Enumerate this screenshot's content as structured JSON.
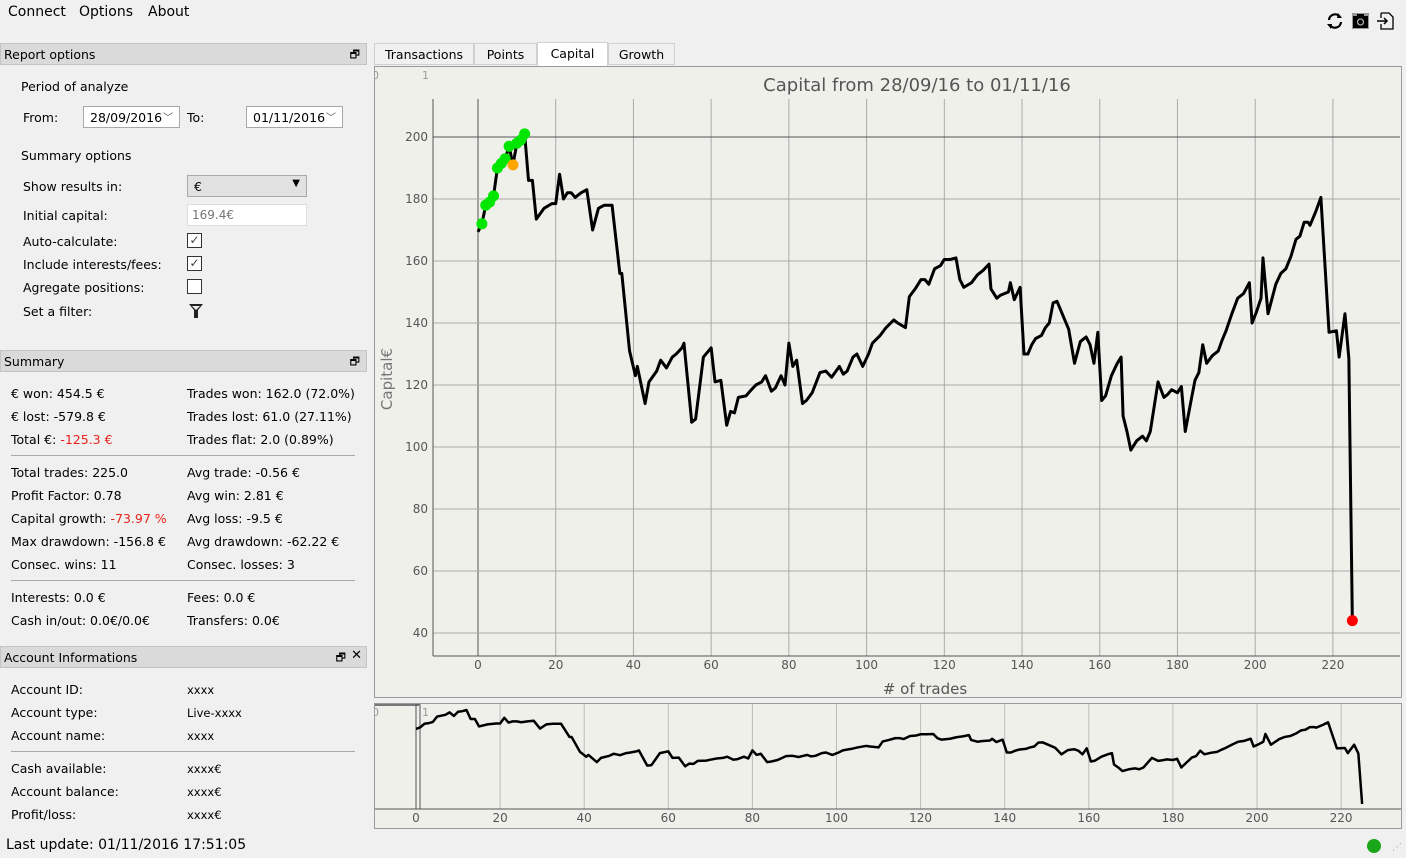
{
  "menu": {
    "connect": "Connect",
    "options": "Options",
    "about": "About"
  },
  "toolbar": {
    "icons": [
      "refresh-icon",
      "camera-icon",
      "export-icon"
    ]
  },
  "report_options": {
    "title": "Report options",
    "period_label": "Period of analyze",
    "from_label": "From:",
    "from_value": "28/09/2016",
    "to_label": "To:",
    "to_value": "01/11/2016",
    "summary_label": "Summary options",
    "show_results_label": "Show results in:",
    "show_results_value": "€",
    "initial_capital_label": "Initial capital:",
    "initial_capital_placeholder": "169.4€",
    "auto_calc_label": "Auto-calculate:",
    "auto_calc": true,
    "include_fees_label": "Include interests/fees:",
    "include_fees": true,
    "aggregate_label": "Agregate positions:",
    "aggregate": false,
    "filter_label": "Set a filter:"
  },
  "summary": {
    "title": "Summary",
    "won_label": "€ won:",
    "won": "454.5 €",
    "lost_label": "€ lost:",
    "lost": "-579.8 €",
    "total_label": "Total €:",
    "total": "-125.3 €",
    "trades_won": "Trades won: 162.0 (72.0%)",
    "trades_lost": "Trades lost: 61.0 (27.11%)",
    "trades_flat": "Trades flat: 2.0 (0.89%)",
    "total_trades": "Total trades: 225.0",
    "profit_factor": "Profit Factor: 0.78",
    "capital_growth_label": "Capital growth:",
    "capital_growth": "-73.97 %",
    "max_drawdown": "Max drawdown: -156.8 €",
    "consec_wins": "Consec. wins: 11",
    "avg_trade": "Avg trade: -0.56 €",
    "avg_win": "Avg win: 2.81 €",
    "avg_loss": "Avg loss: -9.5 €",
    "avg_drawdown": "Avg drawdown: -62.22 €",
    "consec_losses": "Consec. losses: 3",
    "interests": "Interests: 0.0 €",
    "cash_inout": "Cash in/out: 0.0€/0.0€",
    "fees": "Fees: 0.0 €",
    "transfers": "Transfers: 0.0€"
  },
  "account": {
    "title": "Account Informations",
    "rows": [
      {
        "label": "Account ID:",
        "value": "xxxx"
      },
      {
        "label": "Account type:",
        "value": "Live-xxxx"
      },
      {
        "label": "Account name:",
        "value": "xxxx"
      },
      {
        "label": "Cash available:",
        "value": "xxxx€"
      },
      {
        "label": "Account balance:",
        "value": "xxxx€"
      },
      {
        "label": "Profit/loss:",
        "value": "xxxx€"
      }
    ]
  },
  "status": {
    "last_update": "Last update: 01/11/2016 17:51:05",
    "connection_color": "#1aa81a"
  },
  "tabs": [
    {
      "label": "Transactions"
    },
    {
      "label": "Points"
    },
    {
      "label": "Capital",
      "active": true
    },
    {
      "label": "Growth"
    }
  ],
  "chart_data": {
    "type": "line",
    "title": "Capital from 28/09/16 to 01/11/16",
    "xlabel": "# of trades",
    "ylabel": "Capital€",
    "corner_labels": [
      "0",
      "1"
    ],
    "xlim": [
      -11,
      237
    ],
    "ylim": [
      35,
      212
    ],
    "xticks": [
      0,
      20,
      40,
      60,
      80,
      100,
      120,
      140,
      160,
      180,
      200,
      220
    ],
    "yticks": [
      40,
      60,
      80,
      100,
      120,
      140,
      160,
      180,
      200
    ],
    "line_color": "#000000",
    "points": [
      [
        0,
        169.4
      ],
      [
        1,
        172
      ],
      [
        2,
        178
      ],
      [
        3,
        179
      ],
      [
        4,
        181
      ],
      [
        5,
        190
      ],
      [
        6,
        191.5
      ],
      [
        7,
        193
      ],
      [
        8,
        197
      ],
      [
        9,
        191
      ],
      [
        10,
        198
      ],
      [
        11,
        199
      ],
      [
        12,
        201
      ],
      [
        13,
        186
      ],
      [
        14,
        186
      ],
      [
        15,
        173.5
      ],
      [
        17,
        177
      ],
      [
        19,
        178.5
      ],
      [
        20,
        178.5
      ],
      [
        21,
        188
      ],
      [
        22,
        180
      ],
      [
        23,
        182
      ],
      [
        24,
        182
      ],
      [
        25,
        180.5
      ],
      [
        26.5,
        182
      ],
      [
        28,
        183
      ],
      [
        29.5,
        170
      ],
      [
        31,
        177
      ],
      [
        32.5,
        178
      ],
      [
        34.5,
        178
      ],
      [
        36.5,
        156
      ],
      [
        37,
        156
      ],
      [
        39,
        131
      ],
      [
        40.5,
        123
      ],
      [
        41,
        126
      ],
      [
        43,
        114
      ],
      [
        44,
        121
      ],
      [
        46,
        124.5
      ],
      [
        47,
        128
      ],
      [
        48.5,
        125.5
      ],
      [
        50,
        129
      ],
      [
        51,
        130
      ],
      [
        52.5,
        132
      ],
      [
        53,
        133.5
      ],
      [
        55,
        108
      ],
      [
        56,
        109
      ],
      [
        58,
        129
      ],
      [
        60,
        132
      ],
      [
        61,
        121
      ],
      [
        62.5,
        121.5
      ],
      [
        64,
        107
      ],
      [
        65,
        111.5
      ],
      [
        66,
        111
      ],
      [
        67,
        116
      ],
      [
        69,
        116.5
      ],
      [
        70,
        118
      ],
      [
        71.5,
        120
      ],
      [
        73,
        121
      ],
      [
        74,
        123
      ],
      [
        75.5,
        118
      ],
      [
        76.5,
        119
      ],
      [
        78,
        123
      ],
      [
        79,
        120
      ],
      [
        80,
        133.5
      ],
      [
        81,
        126
      ],
      [
        82,
        128
      ],
      [
        83.5,
        114
      ],
      [
        84.5,
        115
      ],
      [
        86,
        117.5
      ],
      [
        88,
        124
      ],
      [
        89.5,
        124.5
      ],
      [
        91,
        122.5
      ],
      [
        93,
        126
      ],
      [
        94,
        123.5
      ],
      [
        95,
        124.5
      ],
      [
        96.5,
        129
      ],
      [
        97.5,
        130
      ],
      [
        99,
        126
      ],
      [
        100.5,
        130
      ],
      [
        101.5,
        133.5
      ],
      [
        103.5,
        136
      ],
      [
        105,
        138.5
      ],
      [
        107,
        141
      ],
      [
        108,
        140
      ],
      [
        110,
        138.5
      ],
      [
        111,
        148.5
      ],
      [
        112.5,
        151
      ],
      [
        114,
        154
      ],
      [
        115,
        154
      ],
      [
        116,
        152.5
      ],
      [
        117.5,
        157.5
      ],
      [
        119,
        158.5
      ],
      [
        120,
        160.5
      ],
      [
        121.5,
        160.5
      ],
      [
        123,
        161
      ],
      [
        124,
        154
      ],
      [
        125,
        151.5
      ],
      [
        127,
        153
      ],
      [
        128.5,
        155.5
      ],
      [
        130,
        157
      ],
      [
        131.5,
        159
      ],
      [
        132,
        151
      ],
      [
        133.5,
        148
      ],
      [
        134.5,
        149
      ],
      [
        136.5,
        150
      ],
      [
        137,
        153
      ],
      [
        138,
        147.5
      ],
      [
        139.5,
        151.5
      ],
      [
        140.5,
        130
      ],
      [
        141.5,
        130
      ],
      [
        142.5,
        133
      ],
      [
        143.5,
        135
      ],
      [
        145,
        136
      ],
      [
        146,
        138.5
      ],
      [
        147,
        140
      ],
      [
        148,
        146.5
      ],
      [
        149,
        147
      ],
      [
        151,
        141
      ],
      [
        152,
        138
      ],
      [
        153.5,
        127
      ],
      [
        155,
        134
      ],
      [
        156.5,
        135.5
      ],
      [
        157.5,
        133
      ],
      [
        158.5,
        127
      ],
      [
        159.5,
        137
      ],
      [
        160.5,
        115
      ],
      [
        161.5,
        116.5
      ],
      [
        163,
        123
      ],
      [
        164.5,
        127
      ],
      [
        165.5,
        129
      ],
      [
        166,
        110
      ],
      [
        167,
        105
      ],
      [
        168,
        99
      ],
      [
        169.5,
        102
      ],
      [
        171,
        103.5
      ],
      [
        172,
        102
      ],
      [
        173,
        105
      ],
      [
        174,
        113
      ],
      [
        175,
        121
      ],
      [
        176.5,
        116
      ],
      [
        177.5,
        117
      ],
      [
        178.5,
        118.5
      ],
      [
        180,
        117.5
      ],
      [
        181,
        119.5
      ],
      [
        182,
        105
      ],
      [
        183.5,
        115
      ],
      [
        184.5,
        121.5
      ],
      [
        185.5,
        124
      ],
      [
        186.5,
        133
      ],
      [
        187.5,
        127
      ],
      [
        189,
        129.5
      ],
      [
        190.5,
        131
      ],
      [
        191.5,
        134.5
      ],
      [
        192.5,
        137.5
      ],
      [
        194,
        143
      ],
      [
        195.5,
        148
      ],
      [
        197,
        149.5
      ],
      [
        198.5,
        153
      ],
      [
        199.2,
        140
      ],
      [
        200.3,
        143.5
      ],
      [
        201.5,
        148
      ],
      [
        202,
        161
      ],
      [
        203.3,
        143
      ],
      [
        205.3,
        152.5
      ],
      [
        206.6,
        156
      ],
      [
        207.9,
        157.5
      ],
      [
        209.2,
        161.5
      ],
      [
        210.5,
        167
      ],
      [
        211.5,
        168
      ],
      [
        212.6,
        172.5
      ],
      [
        213.6,
        172.5
      ],
      [
        214.1,
        171.5
      ],
      [
        215.6,
        176
      ],
      [
        216.9,
        180.5
      ],
      [
        219,
        137
      ],
      [
        220.9,
        137.5
      ],
      [
        221.6,
        129
      ],
      [
        223.1,
        143
      ],
      [
        224.1,
        128.5
      ],
      [
        225,
        44
      ]
    ],
    "markers": [
      {
        "x": 1,
        "y": 172,
        "color": "#00e600"
      },
      {
        "x": 2,
        "y": 178,
        "color": "#00e600"
      },
      {
        "x": 3,
        "y": 179,
        "color": "#00e600"
      },
      {
        "x": 4,
        "y": 181,
        "color": "#00e600"
      },
      {
        "x": 5,
        "y": 190,
        "color": "#00e600"
      },
      {
        "x": 6,
        "y": 191.5,
        "color": "#00e600"
      },
      {
        "x": 7,
        "y": 193,
        "color": "#00e600"
      },
      {
        "x": 8,
        "y": 197,
        "color": "#00e600"
      },
      {
        "x": 10,
        "y": 198,
        "color": "#00e600"
      },
      {
        "x": 11,
        "y": 199,
        "color": "#00e600"
      },
      {
        "x": 12,
        "y": 201,
        "color": "#00e600"
      },
      {
        "x": 9,
        "y": 191,
        "color": "#ffa500"
      },
      {
        "x": 225,
        "y": 44,
        "color": "#ff0000"
      }
    ],
    "navigator": {
      "xticks": [
        0,
        20,
        40,
        60,
        80,
        100,
        120,
        140,
        160,
        180,
        200,
        220
      ],
      "corner_labels": [
        "0",
        "1"
      ]
    }
  }
}
